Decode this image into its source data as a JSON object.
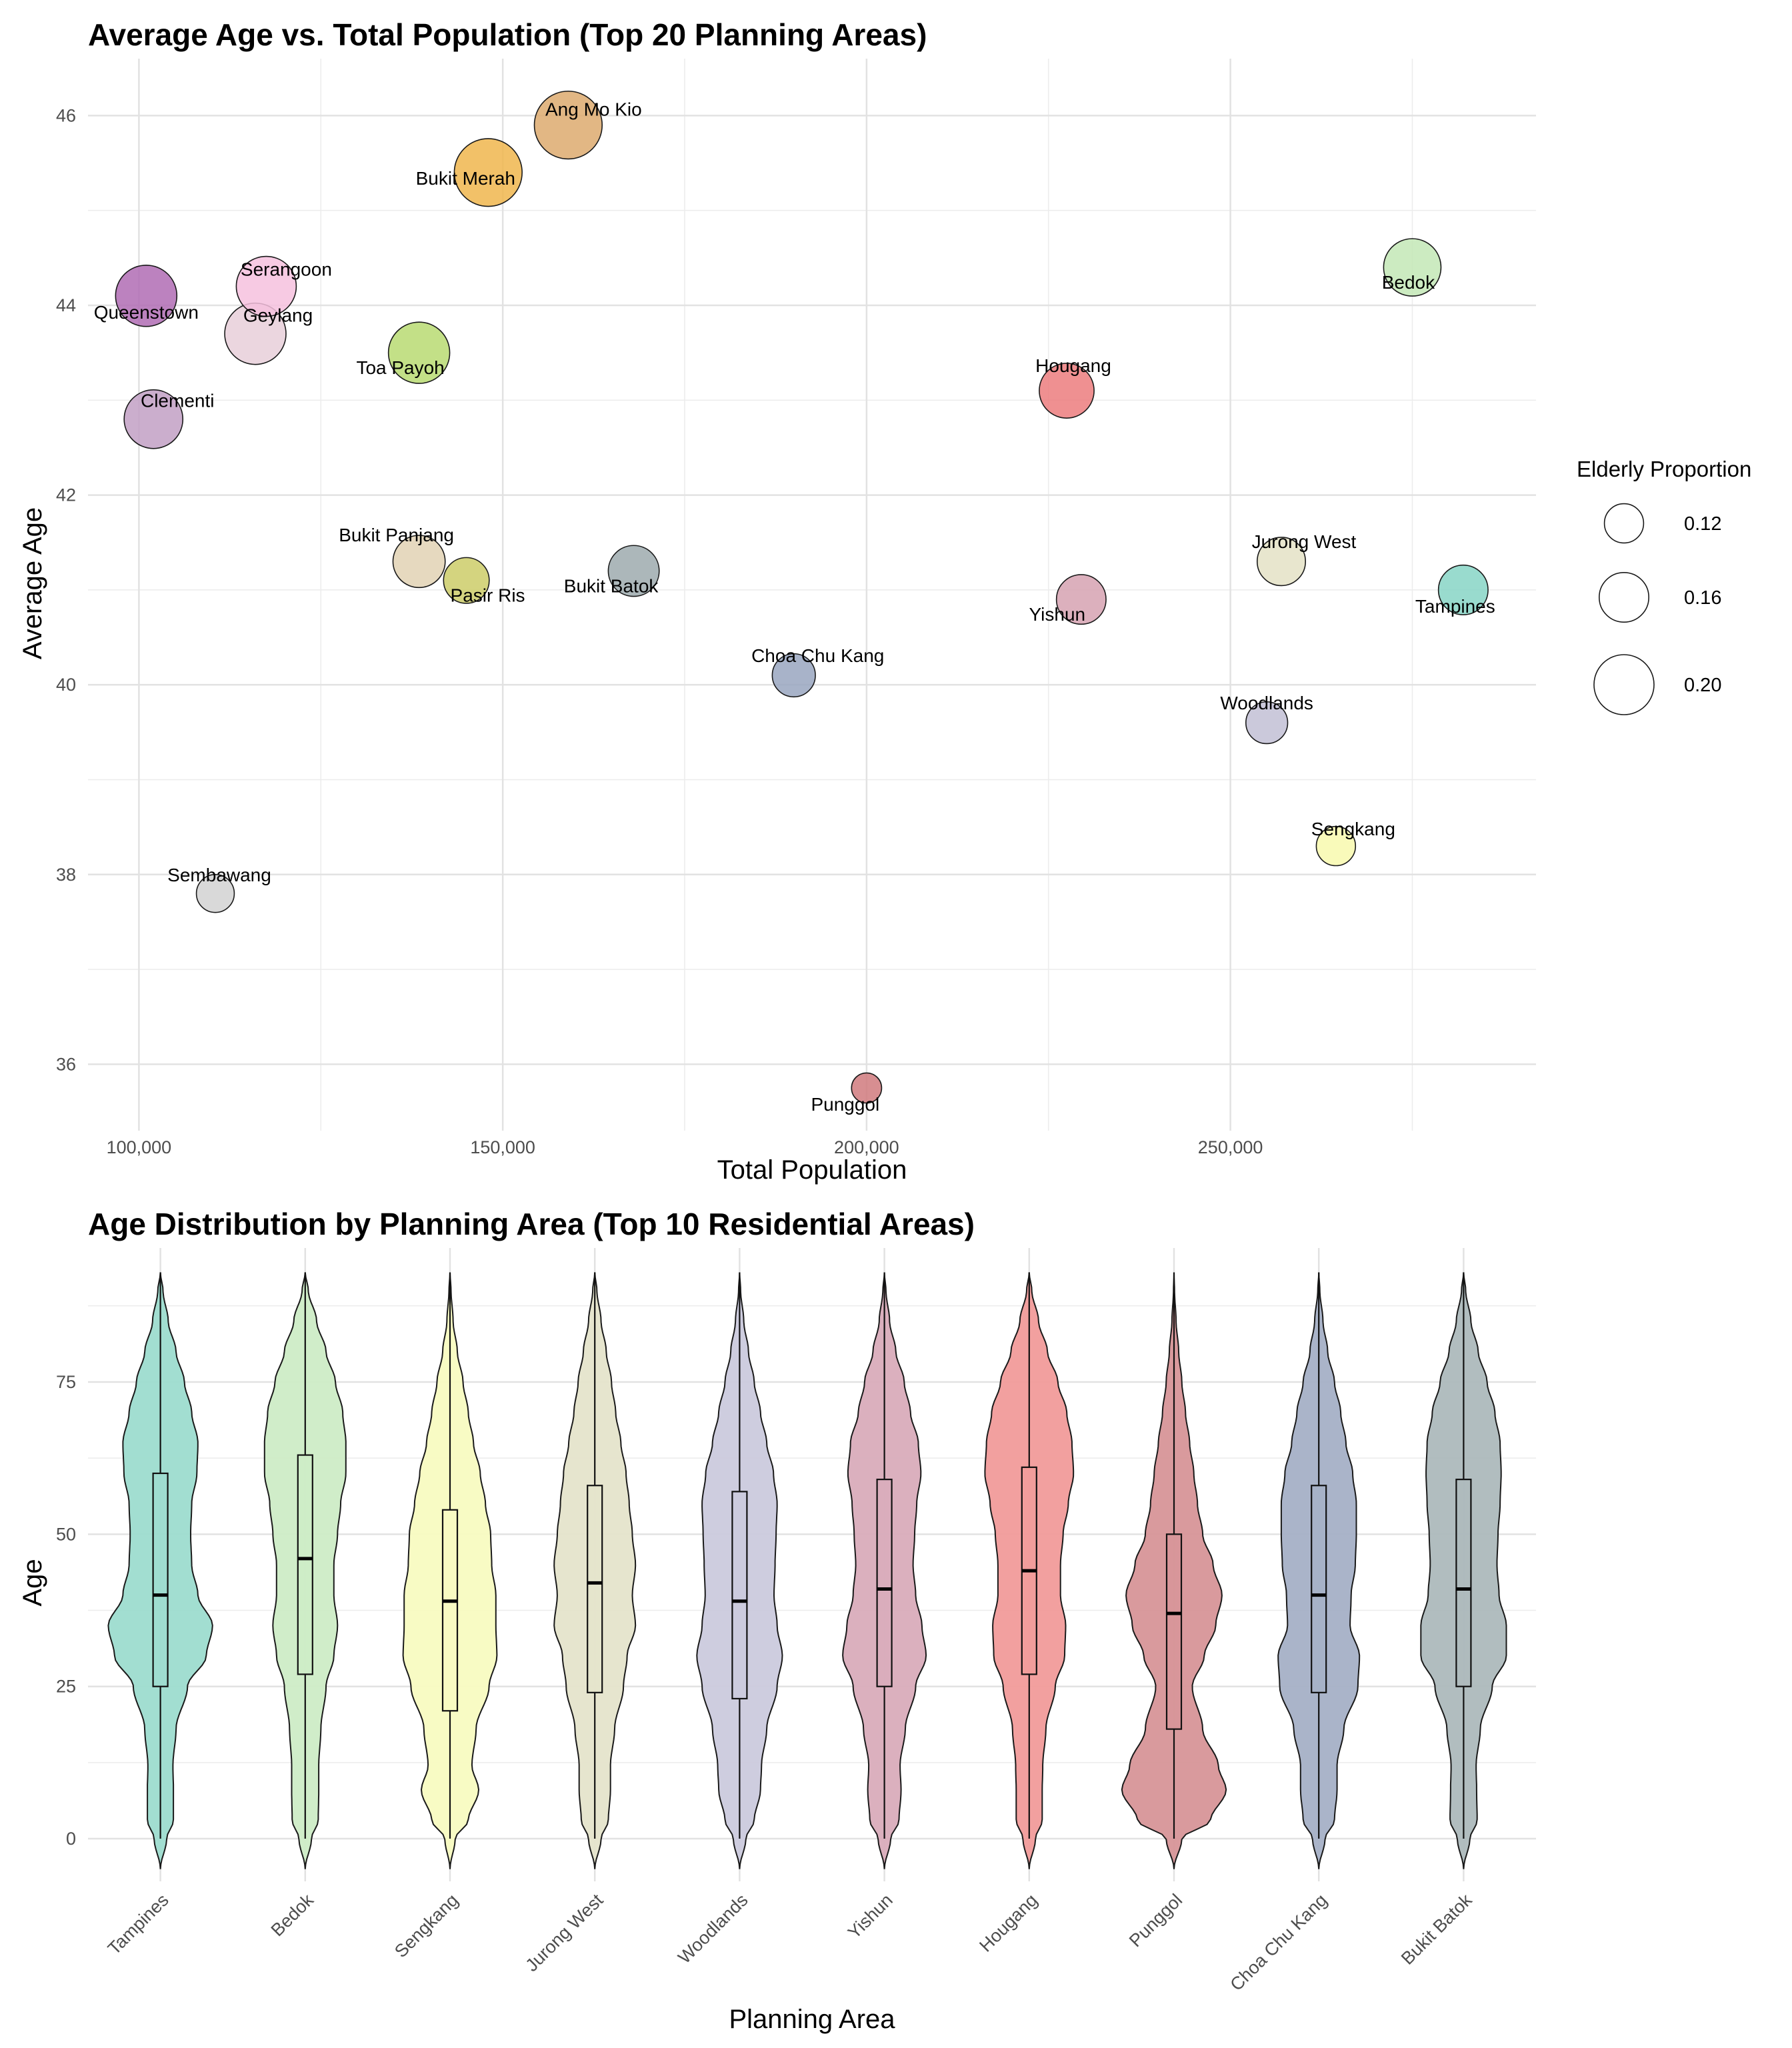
{
  "chart_data": [
    {
      "type": "scatter",
      "title": "Average Age vs. Total Population (Top 20 Planning Areas)",
      "xlabel": "Total Population",
      "ylabel": "Average Age",
      "xlim": [
        93000,
        292000
      ],
      "ylim": [
        35.3,
        46.6
      ],
      "x_ticks": [
        100000,
        150000,
        200000,
        250000
      ],
      "x_tick_labels": [
        "100,000",
        "150,000",
        "200,000",
        "250,000"
      ],
      "y_ticks": [
        36,
        38,
        40,
        42,
        44,
        46
      ],
      "y_tick_labels": [
        "36",
        "38",
        "40",
        "42",
        "44",
        "46"
      ],
      "grid": true,
      "size_legend": {
        "title": "Elderly Proportion",
        "entries": [
          {
            "label": "0.12",
            "value": 0.12
          },
          {
            "label": "0.16",
            "value": 0.16
          },
          {
            "label": "0.20",
            "value": 0.2
          }
        ]
      },
      "points": [
        {
          "label": "Ang Mo Kio",
          "x": 159000,
          "y": 45.9,
          "size": 0.23,
          "color": "#DDAA6E"
        },
        {
          "label": "Bukit Merah",
          "x": 148000,
          "y": 45.4,
          "size": 0.23,
          "color": "#F0B64E"
        },
        {
          "label": "Queenstown",
          "x": 101000,
          "y": 44.1,
          "size": 0.205,
          "color": "#B06CB4"
        },
        {
          "label": "Serangoon",
          "x": 117500,
          "y": 44.2,
          "size": 0.2,
          "color": "#F6C1DE"
        },
        {
          "label": "Geylang",
          "x": 116000,
          "y": 43.7,
          "size": 0.205,
          "color": "#E8CFD9"
        },
        {
          "label": "Toa Payoh",
          "x": 138500,
          "y": 43.5,
          "size": 0.205,
          "color": "#B9DA72"
        },
        {
          "label": "Clementi",
          "x": 102000,
          "y": 42.8,
          "size": 0.195,
          "color": "#C2A0C4"
        },
        {
          "label": "Bedok",
          "x": 275000,
          "y": 44.4,
          "size": 0.19,
          "color": "#C3E8B6"
        },
        {
          "label": "Hougang",
          "x": 227500,
          "y": 43.1,
          "size": 0.18,
          "color": "#EC7D7E"
        },
        {
          "label": "Bukit Panjang",
          "x": 138500,
          "y": 41.3,
          "size": 0.17,
          "color": "#E2D2B4"
        },
        {
          "label": "Pasir Ris",
          "x": 145000,
          "y": 41.1,
          "size": 0.145,
          "color": "#CDCD68"
        },
        {
          "label": "Bukit Batok",
          "x": 168000,
          "y": 41.2,
          "size": 0.165,
          "color": "#9EAAAE"
        },
        {
          "label": "Jurong West",
          "x": 257000,
          "y": 41.3,
          "size": 0.155,
          "color": "#E4E2C5"
        },
        {
          "label": "Tampines",
          "x": 282000,
          "y": 41.0,
          "size": 0.16,
          "color": "#87D5C5"
        },
        {
          "label": "Yishun",
          "x": 229500,
          "y": 40.9,
          "size": 0.16,
          "color": "#D6A2B1"
        },
        {
          "label": "Choa Chu Kang",
          "x": 190000,
          "y": 40.1,
          "size": 0.135,
          "color": "#99A6C0"
        },
        {
          "label": "Woodlands",
          "x": 255000,
          "y": 39.6,
          "size": 0.13,
          "color": "#C2C0D5"
        },
        {
          "label": "Sengkang",
          "x": 264500,
          "y": 38.3,
          "size": 0.12,
          "color": "#F8F9AE"
        },
        {
          "label": "Sembawang",
          "x": 110500,
          "y": 37.8,
          "size": 0.115,
          "color": "#D2D2D2"
        },
        {
          "label": "Punggol",
          "x": 200000,
          "y": 35.75,
          "size": 0.085,
          "color": "#D07A7E"
        }
      ]
    },
    {
      "type": "violin",
      "title": "Age Distribution by Planning Area (Top 10 Residential Areas)",
      "xlabel": "Planning Area",
      "ylabel": "Age",
      "ylim": [
        -7,
        97
      ],
      "y_ticks": [
        0,
        25,
        50,
        75
      ],
      "y_tick_labels": [
        "0",
        "25",
        "50",
        "75"
      ],
      "grid": true,
      "categories": [
        "Tampines",
        "Bedok",
        "Sengkang",
        "Jurong West",
        "Woodlands",
        "Yishun",
        "Hougang",
        "Punggol",
        "Choa Chu Kang",
        "Bukit Batok"
      ],
      "colors": [
        "#9DDCCF",
        "#CDECC6",
        "#F8FBC1",
        "#E5E4CB",
        "#CBCADD",
        "#D9ACBA",
        "#F19B9A",
        "#D79598",
        "#A5B0C6",
        "#ADB9BC"
      ],
      "boxes": [
        {
          "q1": 25,
          "median": 40,
          "q3": 60,
          "min": 0,
          "max": 93
        },
        {
          "q1": 27,
          "median": 46,
          "q3": 63,
          "min": 0,
          "max": 93
        },
        {
          "q1": 21,
          "median": 39,
          "q3": 54,
          "min": 0,
          "max": 93
        },
        {
          "q1": 24,
          "median": 42,
          "q3": 58,
          "min": 0,
          "max": 93
        },
        {
          "q1": 23,
          "median": 39,
          "q3": 57,
          "min": 0,
          "max": 93
        },
        {
          "q1": 25,
          "median": 41,
          "q3": 59,
          "min": 0,
          "max": 93
        },
        {
          "q1": 27,
          "median": 44,
          "q3": 61,
          "min": 0,
          "max": 93
        },
        {
          "q1": 18,
          "median": 37,
          "q3": 50,
          "min": 0,
          "max": 93
        },
        {
          "q1": 24,
          "median": 40,
          "q3": 58,
          "min": 0,
          "max": 93
        },
        {
          "q1": 25,
          "median": 41,
          "q3": 59,
          "min": 0,
          "max": 93
        }
      ],
      "density_ages": [
        -5,
        0,
        3,
        8,
        12,
        18,
        25,
        30,
        35,
        40,
        45,
        50,
        55,
        60,
        65,
        70,
        75,
        80,
        85,
        90,
        93
      ],
      "densities": [
        [
          0.0,
          0.12,
          0.25,
          0.25,
          0.24,
          0.3,
          0.52,
          0.88,
          1.0,
          0.72,
          0.6,
          0.58,
          0.6,
          0.7,
          0.72,
          0.6,
          0.46,
          0.3,
          0.15,
          0.05,
          0.0
        ],
        [
          0.0,
          0.12,
          0.25,
          0.26,
          0.26,
          0.3,
          0.4,
          0.55,
          0.62,
          0.55,
          0.55,
          0.62,
          0.68,
          0.78,
          0.78,
          0.72,
          0.58,
          0.4,
          0.22,
          0.06,
          0.0
        ],
        [
          0.0,
          0.1,
          0.35,
          0.55,
          0.42,
          0.5,
          0.75,
          0.9,
          0.88,
          0.88,
          0.8,
          0.78,
          0.68,
          0.58,
          0.45,
          0.35,
          0.25,
          0.14,
          0.06,
          0.02,
          0.0
        ],
        [
          0.0,
          0.12,
          0.26,
          0.3,
          0.3,
          0.38,
          0.55,
          0.62,
          0.78,
          0.72,
          0.78,
          0.72,
          0.66,
          0.6,
          0.5,
          0.4,
          0.32,
          0.22,
          0.12,
          0.04,
          0.0
        ],
        [
          0.0,
          0.12,
          0.28,
          0.4,
          0.42,
          0.52,
          0.72,
          0.82,
          0.72,
          0.66,
          0.68,
          0.7,
          0.72,
          0.65,
          0.52,
          0.4,
          0.28,
          0.17,
          0.08,
          0.02,
          0.0
        ],
        [
          0.0,
          0.12,
          0.28,
          0.32,
          0.3,
          0.4,
          0.6,
          0.8,
          0.72,
          0.6,
          0.55,
          0.58,
          0.62,
          0.7,
          0.65,
          0.5,
          0.38,
          0.22,
          0.1,
          0.03,
          0.0
        ],
        [
          0.0,
          0.12,
          0.25,
          0.25,
          0.26,
          0.32,
          0.5,
          0.68,
          0.7,
          0.6,
          0.6,
          0.65,
          0.75,
          0.85,
          0.82,
          0.72,
          0.55,
          0.35,
          0.18,
          0.05,
          0.0
        ],
        [
          0.0,
          0.15,
          0.7,
          1.0,
          0.85,
          0.55,
          0.35,
          0.58,
          0.8,
          0.92,
          0.75,
          0.55,
          0.45,
          0.38,
          0.3,
          0.22,
          0.15,
          0.09,
          0.04,
          0.01,
          0.0
        ],
        [
          0.0,
          0.12,
          0.3,
          0.35,
          0.35,
          0.48,
          0.75,
          0.78,
          0.6,
          0.62,
          0.7,
          0.72,
          0.72,
          0.65,
          0.52,
          0.42,
          0.3,
          0.17,
          0.08,
          0.02,
          0.0
        ],
        [
          0.0,
          0.12,
          0.26,
          0.25,
          0.24,
          0.32,
          0.55,
          0.82,
          0.82,
          0.68,
          0.64,
          0.66,
          0.7,
          0.72,
          0.7,
          0.6,
          0.45,
          0.28,
          0.14,
          0.04,
          0.0
        ]
      ]
    }
  ]
}
